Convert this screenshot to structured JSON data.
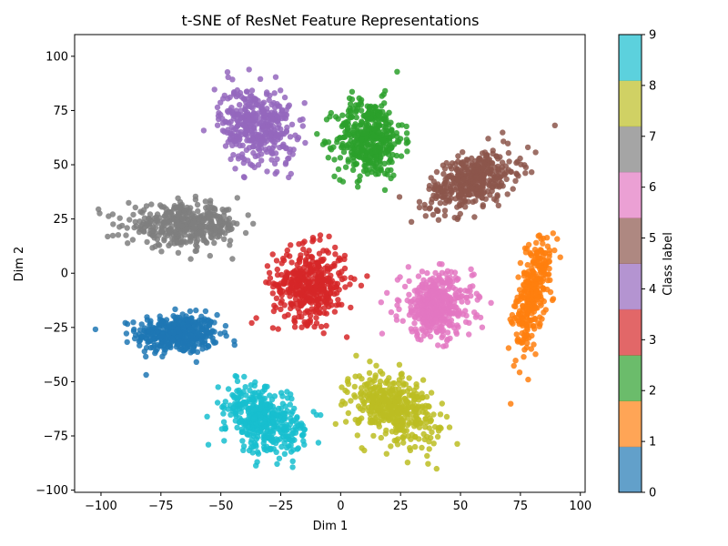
{
  "chart_data": {
    "type": "scatter",
    "title": "t-SNE of ResNet Feature Representations",
    "xlabel": "Dim 1",
    "ylabel": "Dim 2",
    "xlim": [
      -111,
      102
    ],
    "ylim": [
      -101,
      110
    ],
    "xticks": [
      -100,
      -75,
      -50,
      -25,
      0,
      25,
      50,
      75,
      100
    ],
    "yticks": [
      -100,
      -75,
      -50,
      -25,
      0,
      25,
      50,
      75,
      100
    ],
    "grid": false,
    "colormap": "tab10",
    "colorbar": {
      "label": "Class label",
      "range": [
        0,
        9
      ],
      "ticks": [
        0,
        1,
        2,
        3,
        4,
        5,
        6,
        7,
        8,
        9
      ],
      "colors": [
        "#1f77b4",
        "#ff7f0e",
        "#2ca02c",
        "#d62728",
        "#9467bd",
        "#8c564b",
        "#e377c2",
        "#7f7f7f",
        "#bcbd22",
        "#17becf"
      ]
    },
    "clusters": [
      {
        "label": 0,
        "color": "#1f77b4",
        "center": [
          -68,
          -28
        ],
        "spread": [
          17,
          9
        ],
        "count": 420
      },
      {
        "label": 1,
        "color": "#ff7f0e",
        "center": [
          80,
          -10
        ],
        "spread": [
          6,
          26
        ],
        "count": 300
      },
      {
        "label": 2,
        "color": "#2ca02c",
        "center": [
          12,
          62
        ],
        "spread": [
          14,
          18
        ],
        "count": 420
      },
      {
        "label": 3,
        "color": "#d62728",
        "center": [
          -13,
          -5
        ],
        "spread": [
          15,
          17
        ],
        "count": 420
      },
      {
        "label": 4,
        "color": "#9467bd",
        "center": [
          -35,
          68
        ],
        "spread": [
          15,
          18
        ],
        "count": 400
      },
      {
        "label": 5,
        "color": "#8c564b",
        "center": [
          55,
          43
        ],
        "spread": [
          19,
          12
        ],
        "count": 400
      },
      {
        "label": 6,
        "color": "#e377c2",
        "center": [
          40,
          -15
        ],
        "spread": [
          15,
          15
        ],
        "count": 420
      },
      {
        "label": 7,
        "color": "#7f7f7f",
        "center": [
          -65,
          22
        ],
        "spread": [
          24,
          9
        ],
        "count": 420
      },
      {
        "label": 8,
        "color": "#bcbd22",
        "center": [
          22,
          -62
        ],
        "spread": [
          16,
          16
        ],
        "count": 420
      },
      {
        "label": 9,
        "color": "#17becf",
        "center": [
          -32,
          -68
        ],
        "spread": [
          15,
          15
        ],
        "count": 420
      }
    ]
  }
}
